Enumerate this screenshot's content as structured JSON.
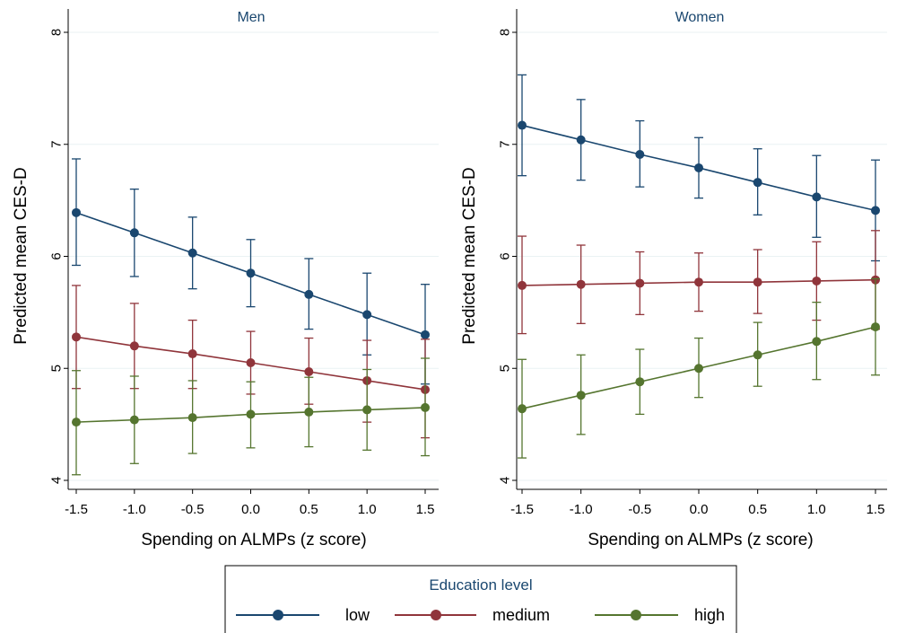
{
  "chart_data": {
    "type": "line",
    "panels": [
      {
        "title": "Men",
        "xlabel": "Spending on ALMPs (z score)",
        "ylabel": "Predicted mean CES-D",
        "x": [
          -1.5,
          -1.0,
          -0.5,
          0.0,
          0.5,
          1.0,
          1.5
        ],
        "xticks": [
          "-1.5",
          "-1.0",
          "-0.5",
          "0.0",
          "0.5",
          "1.0",
          "1.5"
        ],
        "yticks": [
          "4",
          "5",
          "6",
          "7",
          "8"
        ],
        "xlim": [
          -1.5,
          1.5
        ],
        "ylim": [
          4,
          8
        ],
        "series": [
          {
            "name": "low",
            "values": [
              6.39,
              6.21,
              6.03,
              5.85,
              5.66,
              5.48,
              5.3
            ],
            "lower": [
              5.92,
              5.82,
              5.71,
              5.55,
              5.35,
              5.12,
              4.86
            ],
            "upper": [
              6.87,
              6.6,
              6.35,
              6.15,
              5.98,
              5.85,
              5.75
            ]
          },
          {
            "name": "medium",
            "values": [
              5.28,
              5.2,
              5.13,
              5.05,
              4.97,
              4.89,
              4.81
            ],
            "lower": [
              4.82,
              4.82,
              4.82,
              4.77,
              4.68,
              4.52,
              4.38
            ],
            "upper": [
              5.74,
              5.58,
              5.43,
              5.33,
              5.27,
              5.25,
              5.26
            ]
          },
          {
            "name": "high",
            "values": [
              4.52,
              4.54,
              4.56,
              4.59,
              4.61,
              4.63,
              4.65
            ],
            "lower": [
              4.05,
              4.15,
              4.24,
              4.29,
              4.3,
              4.27,
              4.22
            ],
            "upper": [
              4.98,
              4.93,
              4.89,
              4.88,
              4.92,
              4.99,
              5.09
            ]
          }
        ]
      },
      {
        "title": "Women",
        "xlabel": "Spending on ALMPs (z score)",
        "ylabel": "Predicted mean CES-D",
        "x": [
          -1.5,
          -1.0,
          -0.5,
          0.0,
          0.5,
          1.0,
          1.5
        ],
        "xticks": [
          "-1.5",
          "-1.0",
          "-0.5",
          "0.0",
          "0.5",
          "1.0",
          "1.5"
        ],
        "yticks": [
          "4",
          "5",
          "6",
          "7",
          "8"
        ],
        "xlim": [
          -1.5,
          1.5
        ],
        "ylim": [
          4,
          8
        ],
        "series": [
          {
            "name": "low",
            "values": [
              7.17,
              7.04,
              6.91,
              6.79,
              6.66,
              6.53,
              6.41
            ],
            "lower": [
              6.72,
              6.68,
              6.62,
              6.52,
              6.37,
              6.17,
              5.96
            ],
            "upper": [
              7.62,
              7.4,
              7.21,
              7.06,
              6.96,
              6.9,
              6.86
            ]
          },
          {
            "name": "medium",
            "values": [
              5.74,
              5.75,
              5.76,
              5.77,
              5.77,
              5.78,
              5.79
            ],
            "lower": [
              5.31,
              5.4,
              5.48,
              5.51,
              5.49,
              5.43,
              5.35
            ],
            "upper": [
              6.18,
              6.1,
              6.04,
              6.03,
              6.06,
              6.13,
              6.23
            ]
          },
          {
            "name": "high",
            "values": [
              4.64,
              4.76,
              4.88,
              5.0,
              5.12,
              5.24,
              5.37
            ],
            "lower": [
              4.2,
              4.41,
              4.59,
              4.74,
              4.84,
              4.9,
              4.94
            ],
            "upper": [
              5.08,
              5.12,
              5.17,
              5.27,
              5.41,
              5.59,
              5.8
            ]
          }
        ]
      }
    ],
    "legend": {
      "title": "Education level",
      "placement": "bottom-center",
      "entries": [
        "low",
        "medium",
        "high"
      ]
    },
    "colors": {
      "low": "#1a476f",
      "medium": "#90353b",
      "high": "#55752f",
      "title": "#1a476f",
      "grid": "#eaf2f3"
    },
    "grid": true
  }
}
